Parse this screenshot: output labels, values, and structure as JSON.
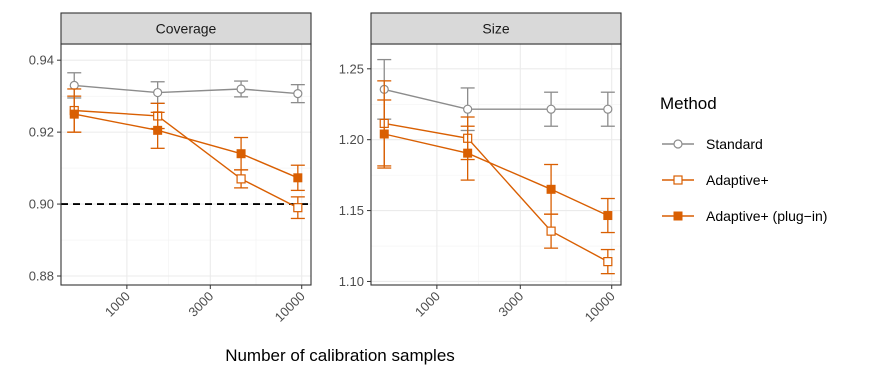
{
  "chart_data": {
    "type": "line",
    "xlabel": "Number of calibration samples",
    "x_scale": "log",
    "x_ticks": [
      1000,
      3000,
      10000
    ],
    "x_tick_labels": [
      "1000",
      "3000",
      "10000"
    ],
    "x": [
      500,
      1500,
      4500,
      9500
    ],
    "grid": true,
    "legend": {
      "title": "Method",
      "placement": "right",
      "entries": [
        {
          "name": "Standard",
          "color": "#8c8c8c",
          "marker": "open-circle"
        },
        {
          "name": "Adaptive+",
          "color": "#d95f02",
          "marker": "open-square"
        },
        {
          "name": "Adaptive+ (plug−in)",
          "color": "#d95f02",
          "marker": "filled-square"
        }
      ]
    },
    "panels": [
      {
        "title": "Coverage",
        "ylim": [
          0.8775,
          0.9445
        ],
        "y_ticks": [
          0.88,
          0.9,
          0.92,
          0.94
        ],
        "y_tick_labels": [
          "0.88",
          "0.90",
          "0.92",
          "0.94"
        ],
        "reference_line": 0.9,
        "series": [
          {
            "name": "Standard",
            "values": [
              0.933,
              0.931,
              0.932,
              0.9307
            ],
            "errors": [
              0.0035,
              0.003,
              0.0022,
              0.0025
            ]
          },
          {
            "name": "Adaptive+",
            "values": [
              0.926,
              0.9245,
              0.907,
              0.899
            ],
            "errors": [
              0.006,
              0.0035,
              0.0025,
              0.003
            ]
          },
          {
            "name": "Adaptive+ (plug−in)",
            "values": [
              0.925,
              0.9205,
              0.914,
              0.9073
            ],
            "errors": [
              0.005,
              0.005,
              0.0045,
              0.0035
            ]
          }
        ]
      },
      {
        "title": "Size",
        "ylim": [
          1.0975,
          1.2675
        ],
        "y_ticks": [
          1.1,
          1.15,
          1.2,
          1.25
        ],
        "y_tick_labels": [
          "1.10",
          "1.15",
          "1.20",
          "1.25"
        ],
        "series": [
          {
            "name": "Standard",
            "values": [
              1.2355,
              1.2215,
              1.2215,
              1.2215
            ],
            "errors": [
              0.021,
              0.015,
              0.012,
              0.012
            ]
          },
          {
            "name": "Adaptive+",
            "values": [
              1.2115,
              1.201,
              1.1355,
              1.114
            ],
            "errors": [
              0.03,
              0.015,
              0.012,
              0.0085
            ]
          },
          {
            "name": "Adaptive+ (plug−in)",
            "values": [
              1.204,
              1.1905,
              1.165,
              1.1465
            ],
            "errors": [
              0.024,
              0.019,
              0.0175,
              0.012
            ]
          }
        ]
      }
    ]
  }
}
